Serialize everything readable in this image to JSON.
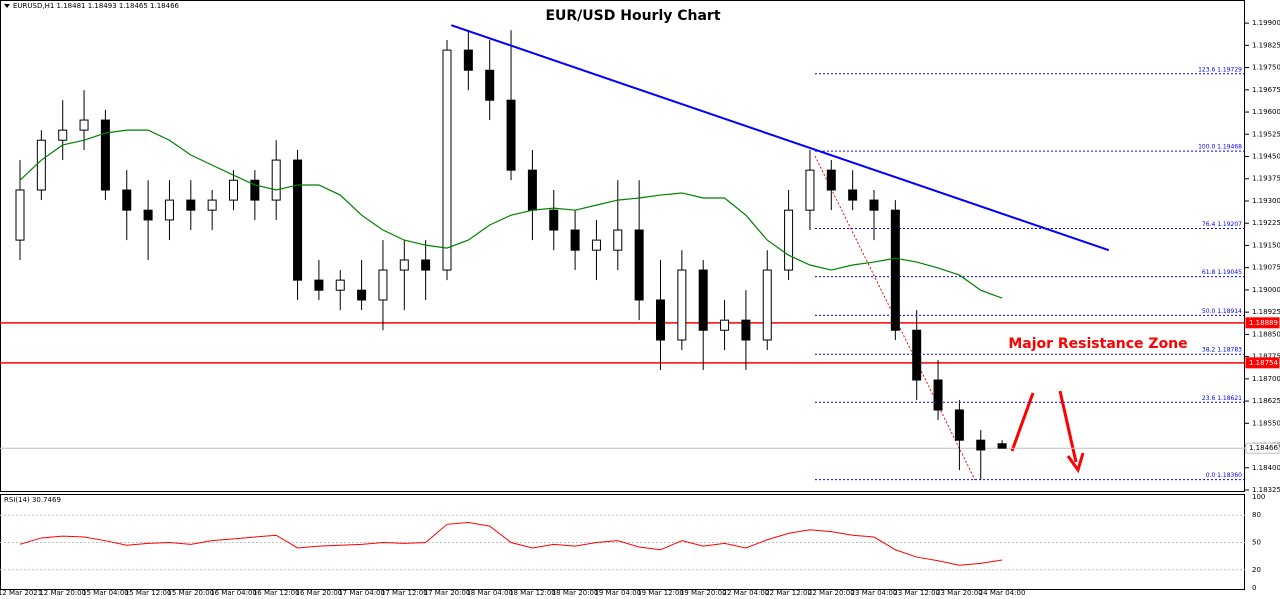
{
  "header": "EURUSD,H1  1.18481 1.18493 1.18465 1.18466",
  "chart_data": [
    {
      "type": "candlestick",
      "title": "EUR/USD Hourly Chart",
      "annotation": "Major Resistance Zone",
      "categories": [
        "12 Mar 2021",
        null,
        "12 Mar 20:00",
        null,
        "15 Mar 04:00",
        null,
        "15 Mar 12:00",
        null,
        "15 Mar 20:00",
        null,
        "16 Mar 04:00",
        null,
        "16 Mar 12:00",
        null,
        "16 Mar 20:00",
        null,
        "17 Mar 04:00",
        null,
        "17 Mar 12:00",
        null,
        "17 Mar 20:00",
        null,
        "18 Mar 04:00",
        null,
        "18 Mar 12:00",
        null,
        "18 Mar 20:00",
        null,
        "19 Mar 04:00",
        null,
        "19 Mar 12:00",
        null,
        "19 Mar 20:00",
        null,
        "22 Mar 04:00",
        null,
        "22 Mar 12:00",
        null,
        "22 Mar 20:00",
        null,
        "23 Mar 04:00",
        null,
        "23 Mar 12:00",
        null,
        "23 Mar 20:00",
        null,
        "24 Mar 04:00"
      ],
      "open": [
        1.19168,
        1.19337,
        1.19505,
        1.19539,
        1.19573,
        1.19337,
        1.19269,
        1.19236,
        1.19303,
        1.19269,
        1.19303,
        1.1937,
        1.19303,
        1.19438,
        1.19033,
        1.18999,
        1.18999,
        1.18966,
        1.19067,
        1.19101,
        1.19067,
        1.19809,
        1.19741,
        1.1964,
        1.19404,
        1.19269,
        1.19202,
        1.19134,
        1.19134,
        1.19202,
        1.18966,
        1.18831,
        1.19067,
        1.18864,
        1.18898,
        1.18831,
        1.19067,
        1.19269,
        1.19404,
        1.19337,
        1.19303,
        1.19269,
        1.18864,
        1.18696,
        1.18595,
        1.18493,
        1.18481
      ],
      "high": [
        1.19438,
        1.19539,
        1.1964,
        1.19674,
        1.19607,
        1.19404,
        1.1937,
        1.1937,
        1.1937,
        1.19337,
        1.19404,
        1.19404,
        1.19505,
        1.19472,
        1.19101,
        1.19067,
        1.19101,
        1.19168,
        1.19168,
        1.19168,
        1.19843,
        1.19876,
        1.19843,
        1.19876,
        1.19472,
        1.19337,
        1.19269,
        1.19236,
        1.1937,
        1.1937,
        1.19101,
        1.19134,
        1.19101,
        1.18966,
        1.18999,
        1.19134,
        1.19337,
        1.19472,
        1.19438,
        1.19404,
        1.19337,
        1.19303,
        1.18932,
        1.18763,
        1.18628,
        1.18527,
        1.18493
      ],
      "low": [
        1.19101,
        1.19303,
        1.19438,
        1.19472,
        1.19303,
        1.19168,
        1.19101,
        1.19168,
        1.19202,
        1.19202,
        1.19269,
        1.19236,
        1.19236,
        1.18966,
        1.18966,
        1.18932,
        1.18932,
        1.18864,
        1.18932,
        1.18966,
        1.19033,
        1.19674,
        1.19573,
        1.1937,
        1.19168,
        1.19134,
        1.19067,
        1.19033,
        1.19067,
        1.18898,
        1.1873,
        1.18797,
        1.1873,
        1.18797,
        1.1873,
        1.18797,
        1.19033,
        1.19202,
        1.19269,
        1.19269,
        1.19168,
        1.18831,
        1.18628,
        1.18561,
        1.18392,
        1.18359,
        1.18465
      ],
      "close": [
        1.19337,
        1.19505,
        1.19539,
        1.19573,
        1.19337,
        1.19269,
        1.19236,
        1.19303,
        1.19269,
        1.19303,
        1.1937,
        1.19303,
        1.19438,
        1.19033,
        1.18999,
        1.19033,
        1.18966,
        1.19067,
        1.19101,
        1.19067,
        1.19809,
        1.19741,
        1.1964,
        1.19404,
        1.19269,
        1.19202,
        1.19134,
        1.19168,
        1.19202,
        1.18966,
        1.18831,
        1.19067,
        1.18864,
        1.18898,
        1.18831,
        1.19067,
        1.19269,
        1.19404,
        1.19337,
        1.19303,
        1.19269,
        1.18864,
        1.18696,
        1.18595,
        1.18493,
        1.1846,
        1.18466
      ],
      "up_color": "#ffffff",
      "down_color": "#000000",
      "ma_color": "#008000",
      "ma_values": [
        1.1937,
        1.19438,
        1.19489,
        1.19505,
        1.19529,
        1.19539,
        1.19539,
        1.19505,
        1.19455,
        1.19421,
        1.19387,
        1.19354,
        1.19337,
        1.19354,
        1.19354,
        1.1932,
        1.19252,
        1.19202,
        1.19168,
        1.19151,
        1.19141,
        1.19168,
        1.19219,
        1.19252,
        1.19269,
        1.19276,
        1.19269,
        1.19286,
        1.19303,
        1.1931,
        1.1932,
        1.19327,
        1.1931,
        1.1931,
        1.19252,
        1.19168,
        1.19117,
        1.19084,
        1.19067,
        1.19084,
        1.19094,
        1.19107,
        1.19094,
        1.19074,
        1.1905,
        1.18999,
        1.18972
      ],
      "trendline": {
        "color": "#0000ff",
        "x": [
          20.2,
          51.0
        ],
        "y": [
          1.19893,
          1.19134
        ]
      },
      "fib_color": "#0000ff",
      "fib_levels": [
        {
          "value": 1.19729,
          "label": "123.6 1.19729"
        },
        {
          "value": 1.19468,
          "label": "100.0 1.19468"
        },
        {
          "value": 1.19207,
          "label": "76.4 1.19207"
        },
        {
          "value": 1.19045,
          "label": "61.8 1.19045"
        },
        {
          "value": 1.18914,
          "label": "50.0 1.18914"
        },
        {
          "value": 1.18783,
          "label": "38.2 1.18783"
        },
        {
          "value": 1.18621,
          "label": "23.6 1.18621"
        },
        {
          "value": 1.1836,
          "label": "0.0 1.18360"
        }
      ],
      "hlines": [
        {
          "value": 1.18889,
          "label": "1.18889",
          "color": "#ff0000"
        },
        {
          "value": 1.18754,
          "label": "1.18754",
          "color": "#ff0000"
        },
        {
          "value": 1.18466,
          "label": "1.18466",
          "color": "#c0c0c0"
        }
      ],
      "ylim": [
        1.18325,
        1.19978
      ],
      "yticks": [
        {
          "value": 1.199,
          "label": "1.19900"
        },
        {
          "value": 1.19825,
          "label": "1.19825"
        },
        {
          "value": 1.1975,
          "label": "1.19750"
        },
        {
          "value": 1.19675,
          "label": "1.19675"
        },
        {
          "value": 1.196,
          "label": "1.19600"
        },
        {
          "value": 1.19525,
          "label": "1.19525"
        },
        {
          "value": 1.1945,
          "label": "1.19450"
        },
        {
          "value": 1.19375,
          "label": "1.19375"
        },
        {
          "value": 1.193,
          "label": "1.19300"
        },
        {
          "value": 1.19225,
          "label": "1.19225"
        },
        {
          "value": 1.1915,
          "label": "1.19150"
        },
        {
          "value": 1.19075,
          "label": "1.19075"
        },
        {
          "value": 1.19,
          "label": "1.19000"
        },
        {
          "value": 1.18925,
          "label": "1.18925"
        },
        {
          "value": 1.1885,
          "label": "1.18850"
        },
        {
          "value": 1.18775,
          "label": "1.18775"
        },
        {
          "value": 1.187,
          "label": "1.18700"
        },
        {
          "value": 1.18625,
          "label": "1.18625"
        },
        {
          "value": 1.1855,
          "label": "1.18550"
        },
        {
          "value": 1.18475,
          "label": "1.18475"
        },
        {
          "value": 1.184,
          "label": "1.18400"
        },
        {
          "value": 1.18325,
          "label": "1.18325"
        }
      ]
    },
    {
      "type": "line",
      "title": "RSI(14) 30.7469",
      "color": "#ff0000",
      "values": [
        48,
        55,
        57,
        56,
        52,
        47,
        49,
        50,
        48,
        52,
        54,
        56,
        58,
        44,
        46,
        47,
        48,
        50,
        49,
        50,
        70,
        72,
        68,
        50,
        44,
        48,
        46,
        50,
        52,
        45,
        42,
        52,
        46,
        49,
        44,
        53,
        60,
        64,
        62,
        58,
        56,
        42,
        34,
        30,
        25,
        27,
        30.7469
      ],
      "ylim": [
        0,
        100
      ],
      "yticks": [
        100,
        80,
        50,
        20,
        0
      ]
    }
  ]
}
